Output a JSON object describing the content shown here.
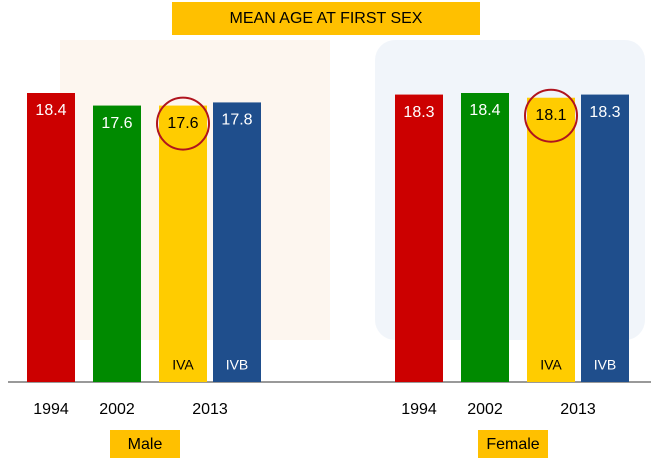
{
  "chart_data": {
    "type": "bar",
    "title": "MEAN AGE AT FIRST SEX",
    "categories": [
      "Male",
      "Female"
    ],
    "series": [
      {
        "name": "1994",
        "color": "#cc0000",
        "values": [
          18.4,
          18.3
        ]
      },
      {
        "name": "2002",
        "color": "#008a00",
        "values": [
          17.6,
          18.4
        ]
      },
      {
        "name": "IVA",
        "period": "2013",
        "color": "#ffcc00",
        "highlight": true,
        "values": [
          17.6,
          18.1
        ]
      },
      {
        "name": "IVB",
        "period": "2013",
        "color": "#1f4e8c",
        "values": [
          17.8,
          18.3
        ]
      }
    ]
  }
}
